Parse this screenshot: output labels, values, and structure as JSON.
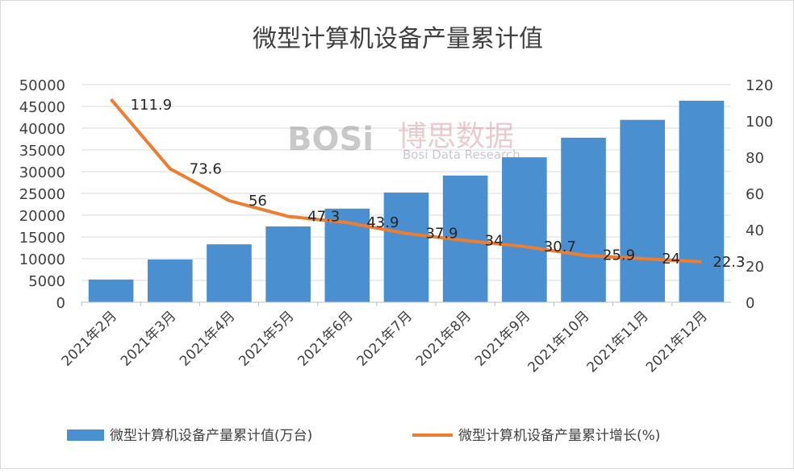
{
  "chart_data": {
    "type": "bar+line",
    "title": "微型计算机设备产量累计值",
    "categories": [
      "2021年2月",
      "2021年3月",
      "2021年4月",
      "2021年5月",
      "2021年6月",
      "2021年7月",
      "2021年8月",
      "2021年9月",
      "2021年10月",
      "2021年11月",
      "2021年12月"
    ],
    "series": [
      {
        "name": "微型计算机设备产量累计值(万台)",
        "type": "bar",
        "axis": "left",
        "color": "#4a90d0",
        "values": [
          5200,
          9800,
          13300,
          17400,
          21500,
          25200,
          29100,
          33300,
          37800,
          41900,
          46300
        ]
      },
      {
        "name": "微型计算机设备产量累计增长(%)",
        "type": "line",
        "axis": "right",
        "color": "#ed7d31",
        "values": [
          111.9,
          73.6,
          56,
          47.3,
          43.9,
          37.9,
          34,
          30.7,
          25.9,
          24,
          22.3
        ],
        "labels": [
          "111.9",
          "73.6",
          "56",
          "47.3",
          "43.9",
          "37.9",
          "34",
          "30.7",
          "25.9",
          "24",
          "22.3"
        ]
      }
    ],
    "yleft": {
      "lim": [
        0,
        50000
      ],
      "ticks": [
        "0",
        "5000",
        "10000",
        "15000",
        "20000",
        "25000",
        "30000",
        "35000",
        "40000",
        "45000",
        "50000"
      ]
    },
    "yright": {
      "lim": [
        0,
        120
      ],
      "ticks": [
        "0",
        "20",
        "40",
        "60",
        "80",
        "100",
        "120"
      ]
    },
    "grid": true,
    "legend": "bottom"
  },
  "watermark": {
    "logo": "BOSi",
    "cn": "博思数据",
    "en": "Bosi Data Research"
  }
}
